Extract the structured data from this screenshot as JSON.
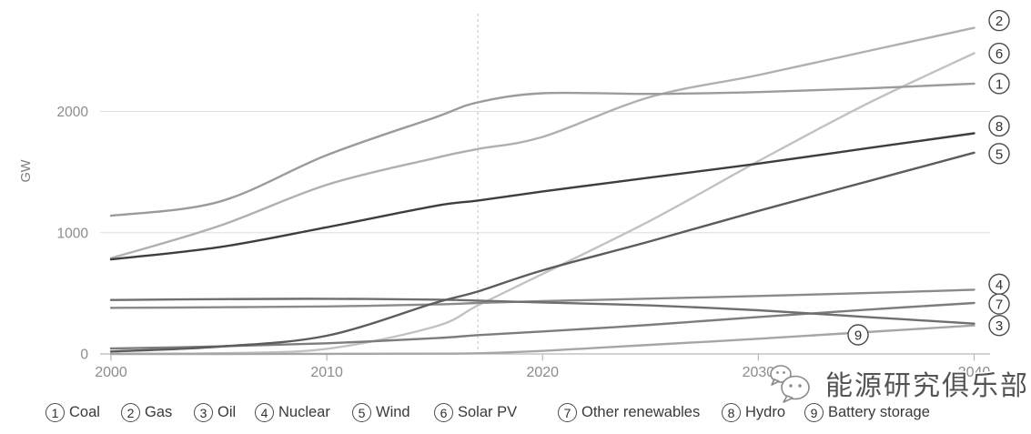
{
  "chart_data": {
    "type": "line",
    "title": "",
    "ylabel": "GW",
    "xlabel": "",
    "xlim": [
      2000,
      2040
    ],
    "ylim": [
      0,
      2800
    ],
    "x_ticks": [
      "2000",
      "2010",
      "2020",
      "2030",
      "2040"
    ],
    "y_ticks": [
      "0",
      "1000",
      "2000"
    ],
    "y_tick_values": [
      0,
      1000,
      2000
    ],
    "grid": "horizontal",
    "divider_year": 2017,
    "legend_position": "bottom",
    "x": [
      2000,
      2005,
      2010,
      2015,
      2017,
      2020,
      2025,
      2030,
      2035,
      2040
    ],
    "series": [
      {
        "num": "1",
        "name": "Coal",
        "color": "#9b9b9b",
        "values": [
          1140,
          1255,
          1640,
          1950,
          2075,
          2150,
          2145,
          2160,
          2190,
          2230
        ]
      },
      {
        "num": "2",
        "name": "Gas",
        "color": "#b0b0b0",
        "values": [
          790,
          1055,
          1395,
          1615,
          1690,
          1790,
          2120,
          2300,
          2495,
          2690
        ]
      },
      {
        "num": "3",
        "name": "Oil",
        "color": "#6f6f6f",
        "values": [
          445,
          452,
          455,
          448,
          440,
          425,
          400,
          360,
          305,
          250
        ]
      },
      {
        "num": "4",
        "name": "Nuclear",
        "color": "#8a8a8a",
        "values": [
          380,
          385,
          392,
          408,
          420,
          436,
          456,
          478,
          502,
          530
        ]
      },
      {
        "num": "5",
        "name": "Wind",
        "color": "#5c5c5c",
        "values": [
          20,
          60,
          150,
          420,
          515,
          690,
          930,
          1180,
          1420,
          1660
        ]
      },
      {
        "num": "6",
        "name": "Solar PV",
        "color": "#c2c2c2",
        "values": [
          2,
          6,
          42,
          225,
          400,
          660,
          1100,
          1590,
          2060,
          2480
        ]
      },
      {
        "num": "7",
        "name": "Other renewables",
        "color": "#7d7d7d",
        "values": [
          45,
          62,
          88,
          130,
          155,
          185,
          240,
          305,
          365,
          420
        ]
      },
      {
        "num": "8",
        "name": "Hydro",
        "color": "#3e3e3e",
        "values": [
          780,
          880,
          1045,
          1220,
          1265,
          1340,
          1455,
          1570,
          1695,
          1820
        ]
      },
      {
        "num": "9",
        "name": "Battery storage",
        "color": "#a6a6a6",
        "values": [
          0,
          0,
          1,
          2,
          5,
          25,
          75,
          125,
          180,
          235
        ]
      }
    ]
  },
  "legend": {
    "items": [
      {
        "num": "1",
        "label": "Coal"
      },
      {
        "num": "2",
        "label": "Gas"
      },
      {
        "num": "3",
        "label": "Oil"
      },
      {
        "num": "4",
        "label": "Nuclear"
      },
      {
        "num": "5",
        "label": "Wind"
      },
      {
        "num": "6",
        "label": "Solar PV"
      },
      {
        "num": "7",
        "label": "Other renewables"
      },
      {
        "num": "8",
        "label": "Hydro"
      },
      {
        "num": "9",
        "label": "Battery storage"
      }
    ]
  },
  "watermark": {
    "text": "能源研究俱乐部",
    "icon": "wechat-icon"
  }
}
